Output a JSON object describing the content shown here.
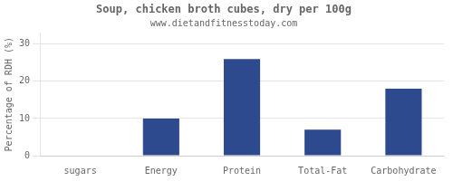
{
  "chart_data": {
    "type": "bar",
    "title": "Soup, chicken broth cubes, dry per 100g",
    "subtitle": "www.dietandfitnesstoday.com",
    "categories": [
      "sugars",
      "Energy",
      "Protein",
      "Total-Fat",
      "Carbohydrate"
    ],
    "values": [
      0,
      10,
      26,
      7,
      18
    ],
    "color": "#2e4a8e",
    "ylabel": "Percentage of RDH (%)",
    "ylim": [
      0,
      33
    ],
    "yticks": [
      0,
      10,
      20,
      30
    ],
    "grid": "y"
  }
}
